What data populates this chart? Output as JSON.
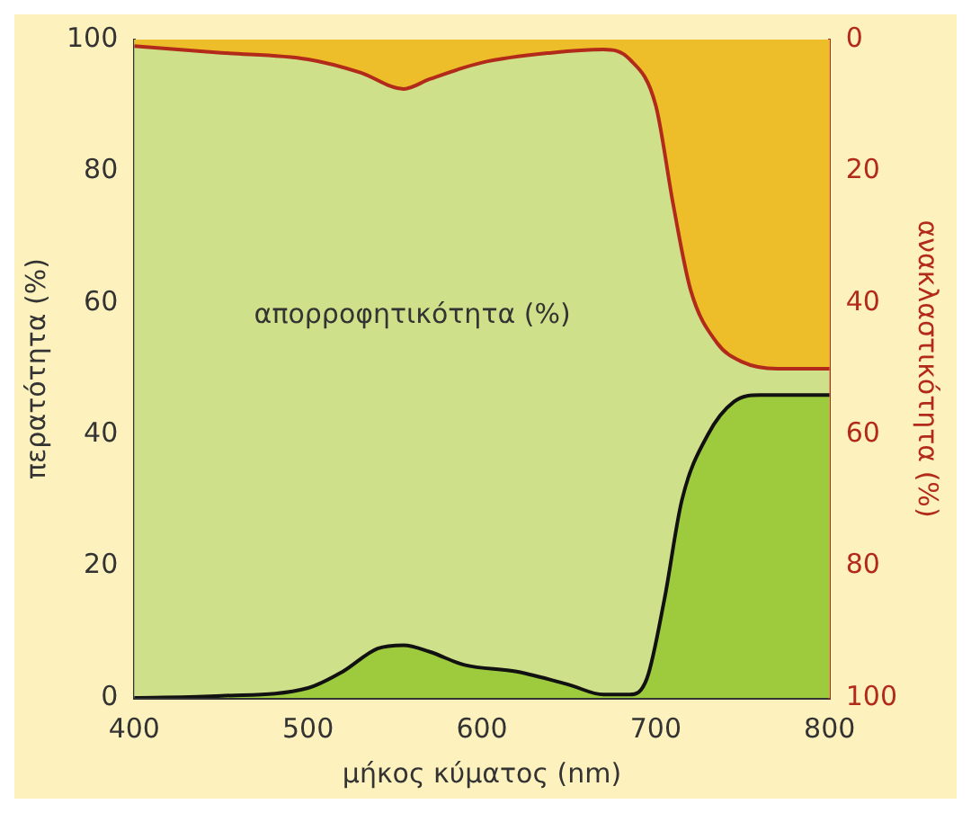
{
  "chart_data": {
    "type": "area",
    "xlabel": "μήκος κύματος (nm)",
    "ylabel": "περατότητα (%)",
    "y2label": "ανακλαστικότητα (%)",
    "series": [
      {
        "color": "#9dcb3d",
        "x": [
          400,
          450,
          500,
          520,
          540,
          555,
          570,
          590,
          620,
          650,
          670,
          685,
          695,
          705,
          715,
          730,
          745,
          760,
          800
        ],
        "values": [
          0,
          0.3,
          1.5,
          4,
          7.5,
          8,
          7,
          5,
          4,
          2,
          0.5,
          0.5,
          3,
          15,
          30,
          40,
          45,
          46,
          46
        ]
      },
      {
        "axis": "y2",
        "color": "#eebd2a",
        "x": [
          400,
          450,
          500,
          530,
          555,
          570,
          600,
          640,
          670,
          685,
          700,
          710,
          720,
          735,
          750,
          770,
          800
        ],
        "values": [
          1,
          2,
          3,
          5,
          7.5,
          6,
          3.5,
          2,
          1.5,
          3,
          10,
          25,
          38,
          46,
          49,
          50,
          50
        ]
      }
    ],
    "bands": [
      {
        "axis": "y",
        "from": 0,
        "to": 100,
        "label": "απορροφητικότητα (%)",
        "color": "#cfe08a"
      }
    ],
    "xlim": [
      400,
      800
    ],
    "xticks": [
      400,
      500,
      600,
      700,
      800
    ],
    "ylim": [
      0,
      100
    ],
    "yticks": [
      0,
      20,
      40,
      60,
      80,
      100
    ],
    "y2lim": [
      100,
      0
    ],
    "y2ticks": [
      0,
      20,
      40,
      60,
      80,
      100
    ],
    "grid": false,
    "legend": false
  }
}
